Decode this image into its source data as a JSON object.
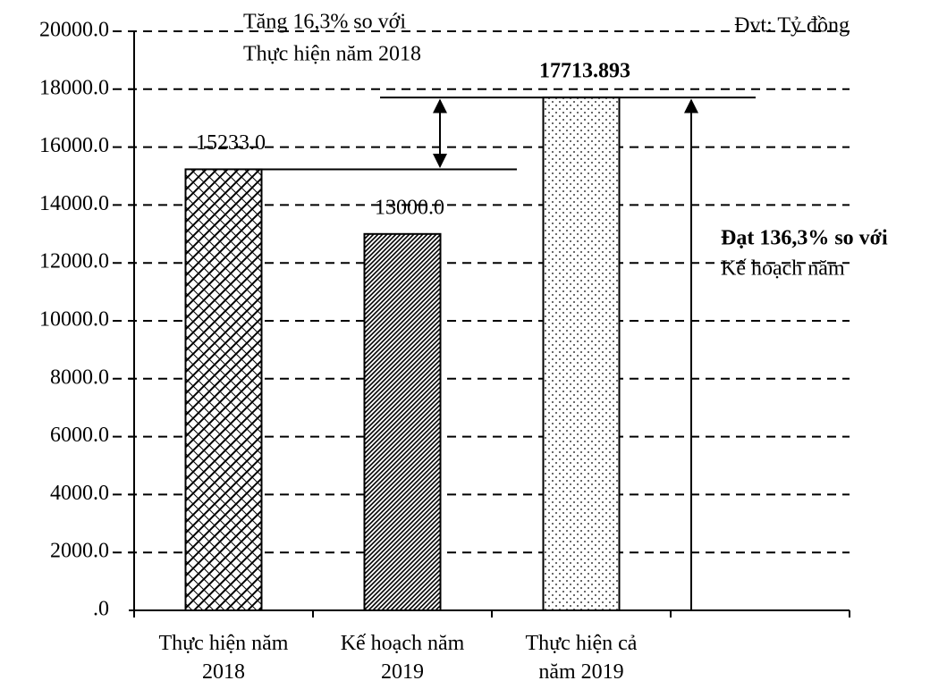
{
  "chart_data": {
    "type": "bar",
    "categories": [
      "Thực hiện năm\n2018",
      "Kế hoạch năm\n2019",
      "Thực hiện cả\nnăm 2019",
      null
    ],
    "values": [
      15233.0,
      13000.0,
      17713.893,
      null
    ],
    "value_labels": [
      "15233.0",
      "13000.0",
      "17713.893",
      null
    ],
    "patterns": [
      "crosshatch",
      "diagonal",
      "dots",
      null
    ],
    "ylim": [
      0,
      20000
    ],
    "yticks": [
      {
        "value": 0,
        "label": ".0"
      },
      {
        "value": 2000,
        "label": "2000.0"
      },
      {
        "value": 4000,
        "label": "4000.0"
      },
      {
        "value": 6000,
        "label": "6000.0"
      },
      {
        "value": 8000,
        "label": "8000.0"
      },
      {
        "value": 10000,
        "label": "10000.0"
      },
      {
        "value": 12000,
        "label": "12000.0"
      },
      {
        "value": 14000,
        "label": "14000.0"
      },
      {
        "value": 16000,
        "label": "16000.0"
      },
      {
        "value": 18000,
        "label": "18000.0"
      },
      {
        "value": 20000,
        "label": "20000.0"
      }
    ],
    "grid": true,
    "annotations": [
      "Tăng 16,3% so với",
      "Thực hiện năm 2018",
      "Đvt: Tỷ đồng",
      "Đạt 136,3% so với",
      "Kế hoạch năm"
    ]
  }
}
